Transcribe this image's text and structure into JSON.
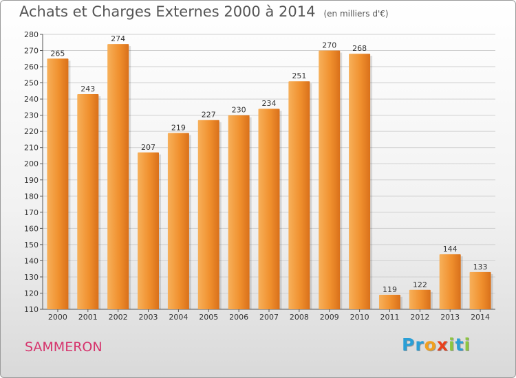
{
  "title": "Achats et Charges Externes 2000 à 2014",
  "unit": "(en milliers d'€)",
  "commune": "SAMMERON",
  "logo": {
    "letters": [
      "P",
      "r",
      "o",
      "x",
      "i",
      "t",
      "i"
    ],
    "colors": [
      "#2a9fd6",
      "#2a9fd6",
      "#f0a020",
      "#e8401c",
      "#8dc63f",
      "#2a9fd6",
      "#8dc63f"
    ]
  },
  "colors": {
    "bar": "#f0902e",
    "bar_light": "#f7b05a",
    "bar_dark": "#d9701a",
    "grid": "#cfcfcf"
  },
  "chart_data": {
    "type": "bar",
    "title": "Achats et Charges Externes 2000 à 2014",
    "subtitle": "(en milliers d'€)",
    "categories": [
      "2000",
      "2001",
      "2002",
      "2003",
      "2004",
      "2005",
      "2006",
      "2007",
      "2008",
      "2009",
      "2010",
      "2011",
      "2012",
      "2013",
      "2014"
    ],
    "values": [
      265,
      243,
      274,
      207,
      219,
      227,
      230,
      234,
      251,
      270,
      268,
      119,
      122,
      144,
      133
    ],
    "ylim": [
      110,
      280
    ],
    "yticks": [
      110,
      120,
      130,
      140,
      150,
      160,
      170,
      180,
      190,
      200,
      210,
      220,
      230,
      240,
      250,
      260,
      270,
      280
    ],
    "grid": true,
    "xlabel": "",
    "ylabel": ""
  }
}
